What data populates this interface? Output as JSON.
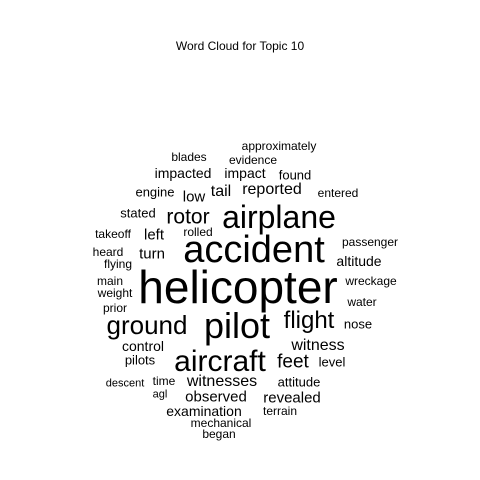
{
  "chart_data": {
    "type": "wordcloud",
    "title": "Word Cloud for Topic 10",
    "text_color": "#000000",
    "background": "#ffffff",
    "words": [
      {
        "text": "helicopter",
        "weight": 46
      },
      {
        "text": "accident",
        "weight": 38
      },
      {
        "text": "pilot",
        "weight": 36
      },
      {
        "text": "airplane",
        "weight": 32
      },
      {
        "text": "aircraft",
        "weight": 30
      },
      {
        "text": "ground",
        "weight": 26
      },
      {
        "text": "flight",
        "weight": 24
      },
      {
        "text": "rotor",
        "weight": 21
      },
      {
        "text": "feet",
        "weight": 19
      },
      {
        "text": "witness",
        "weight": 16
      },
      {
        "text": "witnesses",
        "weight": 16
      },
      {
        "text": "reported",
        "weight": 16
      },
      {
        "text": "turn",
        "weight": 15
      },
      {
        "text": "observed",
        "weight": 15
      },
      {
        "text": "revealed",
        "weight": 15
      },
      {
        "text": "tail",
        "weight": 16
      },
      {
        "text": "left",
        "weight": 15
      },
      {
        "text": "low",
        "weight": 15
      },
      {
        "text": "impacted",
        "weight": 14
      },
      {
        "text": "impact",
        "weight": 14
      },
      {
        "text": "control",
        "weight": 14
      },
      {
        "text": "altitude",
        "weight": 14
      },
      {
        "text": "examination",
        "weight": 14
      },
      {
        "text": "pilots",
        "weight": 13
      },
      {
        "text": "level",
        "weight": 13
      },
      {
        "text": "engine",
        "weight": 13
      },
      {
        "text": "found",
        "weight": 13
      },
      {
        "text": "nose",
        "weight": 13
      },
      {
        "text": "attitude",
        "weight": 13
      },
      {
        "text": "stated",
        "weight": 13
      },
      {
        "text": "evidence",
        "weight": 12
      },
      {
        "text": "approximately",
        "weight": 12
      },
      {
        "text": "time",
        "weight": 12
      },
      {
        "text": "terrain",
        "weight": 12
      },
      {
        "text": "wreckage",
        "weight": 12
      },
      {
        "text": "water",
        "weight": 12
      },
      {
        "text": "weight",
        "weight": 12
      },
      {
        "text": "flying",
        "weight": 12
      },
      {
        "text": "passenger",
        "weight": 12
      },
      {
        "text": "rolled",
        "weight": 12
      },
      {
        "text": "blades",
        "weight": 12
      },
      {
        "text": "entered",
        "weight": 12
      },
      {
        "text": "takeoff",
        "weight": 12
      },
      {
        "text": "heard",
        "weight": 12
      },
      {
        "text": "main",
        "weight": 12
      },
      {
        "text": "prior",
        "weight": 12
      },
      {
        "text": "descent",
        "weight": 11
      },
      {
        "text": "agl",
        "weight": 11
      },
      {
        "text": "mechanical",
        "weight": 12
      },
      {
        "text": "began",
        "weight": 12
      }
    ]
  }
}
